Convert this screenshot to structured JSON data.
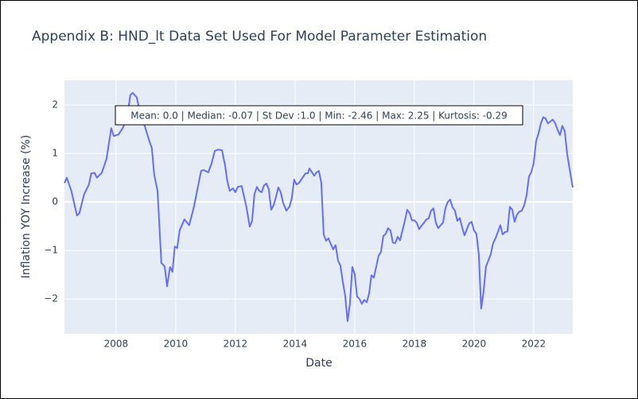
{
  "chart_data": {
    "type": "line",
    "title": "Appendix B: HND_lt Data Set Used For Model Parameter Estimation",
    "x_label": "Date",
    "y_label": "Inflation YOY Increase (%)",
    "annotation": "Mean: 0.0 | Median: -0.07 | St Dev :1.0 | Min: -2.46 | Max: 2.25 | Kurtosis: -0.29",
    "color": "#636efa",
    "grid": true,
    "xlim": [
      2006.27,
      2023.31
    ],
    "xticks": [
      2008,
      2010,
      2012,
      2014,
      2016,
      2018,
      2020,
      2022
    ],
    "ylim": [
      -2.72,
      2.51
    ],
    "yticks": [
      {
        "value": -2,
        "label": "−2"
      },
      {
        "value": -1,
        "label": "−1"
      },
      0,
      1,
      2
    ],
    "x": [
      2006.27,
      2006.35,
      2006.5,
      2006.69,
      2006.77,
      2006.93,
      2007.09,
      2007.17,
      2007.28,
      2007.36,
      2007.52,
      2007.68,
      2007.76,
      2007.84,
      2007.92,
      2008.08,
      2008.24,
      2008.4,
      2008.48,
      2008.56,
      2008.69,
      2008.8,
      2008.96,
      2009.12,
      2009.2,
      2009.28,
      2009.39,
      2009.52,
      2009.63,
      2009.71,
      2009.81,
      2009.89,
      2009.97,
      2010.05,
      2010.13,
      2010.29,
      2010.45,
      2010.61,
      2010.77,
      2010.85,
      2010.93,
      2011.09,
      2011.2,
      2011.31,
      2011.41,
      2011.55,
      2011.65,
      2011.73,
      2011.81,
      2011.92,
      2012.0,
      2012.08,
      2012.21,
      2012.37,
      2012.48,
      2012.56,
      2012.64,
      2012.72,
      2012.8,
      2012.88,
      2012.96,
      2013.04,
      2013.12,
      2013.2,
      2013.28,
      2013.36,
      2013.44,
      2013.52,
      2013.6,
      2013.71,
      2013.81,
      2013.89,
      2013.97,
      2014.05,
      2014.13,
      2014.24,
      2014.35,
      2014.43,
      2014.48,
      2014.56,
      2014.64,
      2014.72,
      2014.8,
      2014.88,
      2014.96,
      2015.04,
      2015.12,
      2015.2,
      2015.28,
      2015.36,
      2015.44,
      2015.52,
      2015.6,
      2015.68,
      2015.76,
      2015.84,
      2015.92,
      2016.0,
      2016.08,
      2016.16,
      2016.24,
      2016.32,
      2016.4,
      2016.48,
      2016.56,
      2016.64,
      2016.72,
      2016.8,
      2016.88,
      2016.96,
      2017.04,
      2017.12,
      2017.2,
      2017.28,
      2017.36,
      2017.44,
      2017.52,
      2017.6,
      2017.68,
      2017.76,
      2017.84,
      2017.92,
      2018.0,
      2018.08,
      2018.16,
      2018.24,
      2018.32,
      2018.4,
      2018.48,
      2018.56,
      2018.64,
      2018.72,
      2018.8,
      2018.88,
      2018.96,
      2019.04,
      2019.12,
      2019.2,
      2019.28,
      2019.36,
      2019.44,
      2019.52,
      2019.6,
      2019.68,
      2019.76,
      2019.84,
      2019.92,
      2020.0,
      2020.08,
      2020.16,
      2020.24,
      2020.32,
      2020.4,
      2020.48,
      2020.56,
      2020.64,
      2020.72,
      2020.8,
      2020.88,
      2020.96,
      2021.04,
      2021.12,
      2021.2,
      2021.28,
      2021.36,
      2021.44,
      2021.52,
      2021.6,
      2021.68,
      2021.76,
      2021.84,
      2021.92,
      2022.0,
      2022.08,
      2022.16,
      2022.24,
      2022.32,
      2022.4,
      2022.48,
      2022.56,
      2022.64,
      2022.72,
      2022.8,
      2022.88,
      2022.96,
      2023.04,
      2023.12,
      2023.2,
      2023.31
    ],
    "values": [
      0.39,
      0.5,
      0.23,
      -0.28,
      -0.23,
      0.16,
      0.36,
      0.59,
      0.6,
      0.5,
      0.6,
      0.89,
      1.21,
      1.52,
      1.36,
      1.39,
      1.54,
      1.87,
      2.21,
      2.25,
      2.16,
      1.87,
      1.57,
      1.25,
      1.11,
      0.56,
      0.23,
      -1.26,
      -1.33,
      -1.74,
      -1.34,
      -1.44,
      -0.92,
      -0.95,
      -0.59,
      -0.36,
      -0.48,
      -0.1,
      0.39,
      0.64,
      0.66,
      0.61,
      0.79,
      1.05,
      1.08,
      1.07,
      0.77,
      0.43,
      0.23,
      0.28,
      0.2,
      0.31,
      0.33,
      -0.1,
      -0.51,
      -0.39,
      0.16,
      0.31,
      0.23,
      0.2,
      0.34,
      0.38,
      0.26,
      -0.16,
      -0.07,
      0.1,
      0.3,
      0.2,
      -0.02,
      -0.18,
      -0.1,
      0.07,
      0.46,
      0.36,
      0.39,
      0.49,
      0.59,
      0.59,
      0.69,
      0.62,
      0.54,
      0.61,
      0.64,
      0.39,
      -0.67,
      -0.8,
      -0.75,
      -0.87,
      -0.98,
      -0.89,
      -1.21,
      -1.31,
      -1.64,
      -1.93,
      -2.46,
      -2.1,
      -1.34,
      -1.49,
      -1.95,
      -2.0,
      -2.1,
      -2.02,
      -2.07,
      -1.9,
      -1.51,
      -1.56,
      -1.34,
      -1.11,
      -1.03,
      -0.7,
      -0.66,
      -0.54,
      -0.59,
      -0.84,
      -0.85,
      -0.72,
      -0.79,
      -0.59,
      -0.39,
      -0.16,
      -0.23,
      -0.38,
      -0.38,
      -0.43,
      -0.56,
      -0.49,
      -0.43,
      -0.36,
      -0.34,
      -0.18,
      -0.13,
      -0.43,
      -0.54,
      -0.48,
      -0.43,
      -0.13,
      0.0,
      0.05,
      -0.11,
      -0.18,
      -0.39,
      -0.33,
      -0.52,
      -0.69,
      -0.56,
      -0.44,
      -0.41,
      -0.59,
      -0.66,
      -1.08,
      -2.2,
      -1.85,
      -1.33,
      -1.21,
      -1.08,
      -0.85,
      -0.75,
      -0.62,
      -0.48,
      -0.67,
      -0.62,
      -0.61,
      -0.1,
      -0.16,
      -0.41,
      -0.26,
      -0.2,
      -0.18,
      -0.07,
      0.13,
      0.52,
      0.62,
      0.8,
      1.25,
      1.41,
      1.62,
      1.75,
      1.72,
      1.62,
      1.66,
      1.7,
      1.62,
      1.49,
      1.38,
      1.57,
      1.46,
      1.0,
      0.69,
      0.3
    ]
  }
}
